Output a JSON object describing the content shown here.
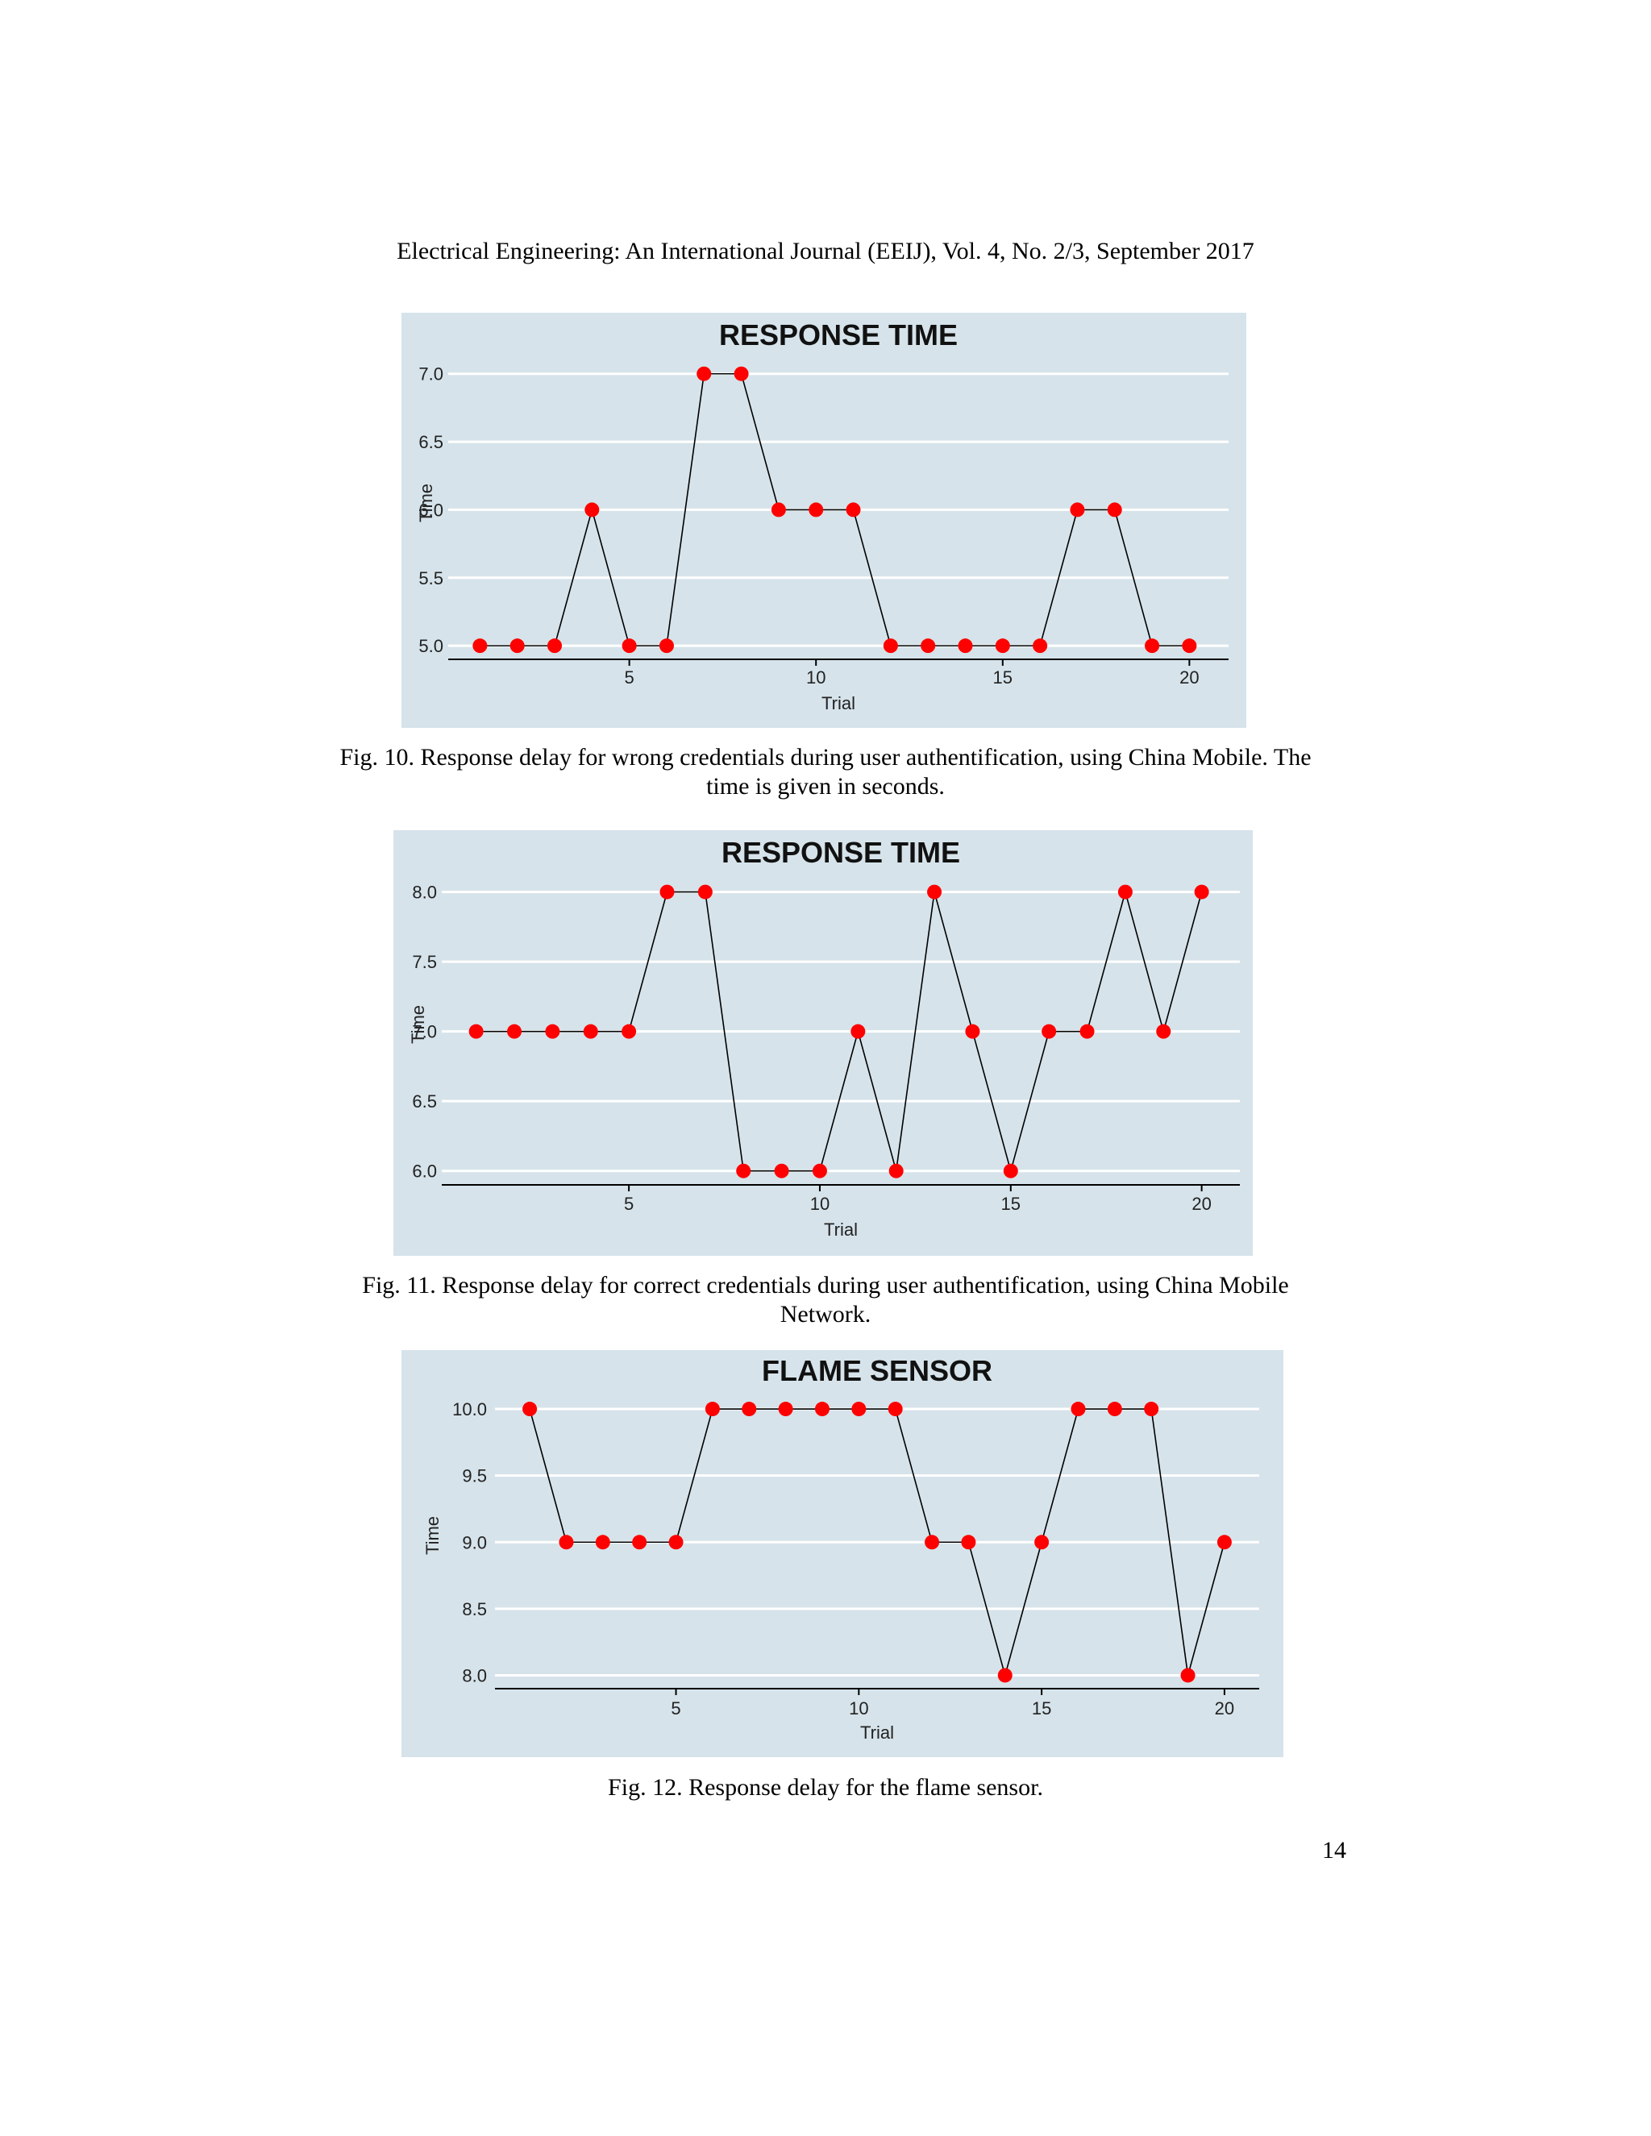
{
  "header": {
    "running_title": "Electrical Engineering: An International Journal (EEIJ), Vol. 4, No. 2/3, September 2017"
  },
  "figures": [
    {
      "caption_lines": [
        "Fig. 10. Response delay for wrong credentials during user authentification, using China Mobile. The",
        "time is given in seconds."
      ]
    },
    {
      "caption_lines": [
        "Fig. 11. Response delay for correct credentials during user authentification, using China Mobile",
        "Network."
      ]
    },
    {
      "caption_lines": [
        "Fig. 12. Response delay for the flame sensor."
      ]
    }
  ],
  "page_number": "14",
  "colors": {
    "panel_background": "#d6e3ea",
    "gridline": "#ffffff",
    "point": "#ff0000",
    "line": "#000000"
  },
  "chart_data": [
    {
      "type": "line",
      "title": "RESPONSE TIME",
      "xlabel": "Trial",
      "ylabel": "Time",
      "x": [
        1,
        2,
        3,
        4,
        5,
        6,
        7,
        8,
        9,
        10,
        11,
        12,
        13,
        14,
        15,
        16,
        17,
        18,
        19,
        20
      ],
      "series": [
        {
          "values": [
            5.0,
            5.0,
            5.0,
            6.0,
            5.0,
            5.0,
            7.0,
            7.0,
            6.0,
            6.0,
            6.0,
            5.0,
            5.0,
            5.0,
            5.0,
            5.0,
            6.0,
            6.0,
            5.0,
            5.0
          ]
        }
      ],
      "xticks": [
        5,
        10,
        15,
        20
      ],
      "yticks": [
        "5.0",
        "5.5",
        "6.0",
        "6.5",
        "7.0"
      ],
      "xlim": [
        0.15,
        21.05
      ],
      "ylim": [
        4.9,
        7.2
      ],
      "grid": "horizontal",
      "legend": "none"
    },
    {
      "type": "line",
      "title": "RESPONSE TIME",
      "xlabel": "Trial",
      "ylabel": "Time",
      "x": [
        1,
        2,
        3,
        4,
        5,
        6,
        7,
        8,
        9,
        10,
        11,
        12,
        13,
        14,
        15,
        16,
        17,
        18,
        19,
        20
      ],
      "series": [
        {
          "values": [
            7.0,
            7.0,
            7.0,
            7.0,
            7.0,
            8.0,
            8.0,
            6.0,
            6.0,
            6.0,
            7.0,
            6.0,
            8.0,
            7.0,
            6.0,
            7.0,
            7.0,
            8.0,
            7.0,
            8.0
          ]
        }
      ],
      "xticks": [
        5,
        10,
        15,
        20
      ],
      "yticks": [
        "6.0",
        "6.5",
        "7.0",
        "7.5",
        "8.0"
      ],
      "xlim": [
        0.1,
        21.0
      ],
      "ylim": [
        5.9,
        8.2
      ],
      "grid": "horizontal",
      "legend": "none"
    },
    {
      "type": "line",
      "title": "FLAME SENSOR",
      "xlabel": "Trial",
      "ylabel": "Time",
      "x": [
        1,
        2,
        3,
        4,
        5,
        6,
        7,
        8,
        9,
        10,
        11,
        12,
        13,
        14,
        15,
        16,
        17,
        18,
        19,
        20
      ],
      "series": [
        {
          "values": [
            10.0,
            9.0,
            9.0,
            9.0,
            9.0,
            10.0,
            10.0,
            10.0,
            10.0,
            10.0,
            10.0,
            9.0,
            9.0,
            8.0,
            9.0,
            10.0,
            10.0,
            10.0,
            8.0,
            9.0
          ]
        }
      ],
      "xticks": [
        5,
        10,
        15,
        20
      ],
      "yticks": [
        "8.0",
        "8.5",
        "9.0",
        "9.5",
        "10.0"
      ],
      "xlim": [
        0.05,
        20.95
      ],
      "ylim": [
        7.9,
        10.2
      ],
      "grid": "horizontal",
      "legend": "none"
    }
  ]
}
